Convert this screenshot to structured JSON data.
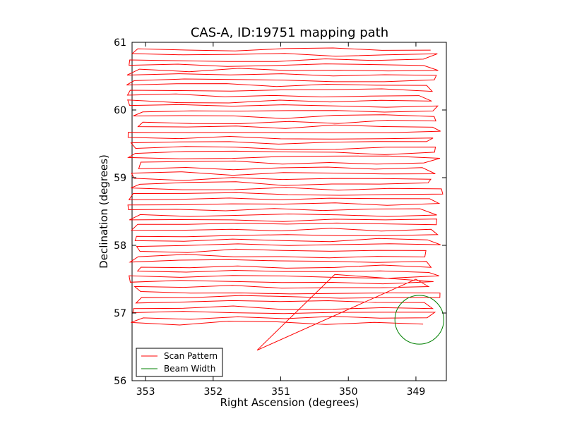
{
  "chart_data": {
    "type": "line",
    "title": "CAS-A, ID:19751 mapping path",
    "xlabel": "Right Ascension (degrees)",
    "ylabel": "Declination (degrees)",
    "xlim": [
      353.2,
      348.55
    ],
    "ylim": [
      56,
      61
    ],
    "x_inverted": true,
    "xticks": [
      353,
      352,
      351,
      350,
      349
    ],
    "xtick_labels": [
      "353",
      "352",
      "351",
      "350",
      "349"
    ],
    "yticks": [
      56,
      57,
      58,
      59,
      60,
      61
    ],
    "ytick_labels": [
      "56",
      "57",
      "58",
      "59",
      "60",
      "61"
    ],
    "grid": false,
    "legend": {
      "placement": "lower-left"
    },
    "series": [
      {
        "name": "Scan Pattern",
        "color": "#ff0000",
        "kind": "raster-scan",
        "dec_start": 56.85,
        "dec_end": 60.82,
        "num_legs": 27,
        "ra_west": 353.05,
        "ra_east": 348.8,
        "jump": {
          "from": [
            349.0,
            57.5
          ],
          "via": [
            351.35,
            56.45
          ],
          "to": [
            350.2,
            57.57
          ]
        }
      },
      {
        "name": "Beam Width",
        "color": "#008000",
        "kind": "circle",
        "center": [
          348.95,
          56.9
        ],
        "radius_deg": 0.36
      }
    ]
  }
}
